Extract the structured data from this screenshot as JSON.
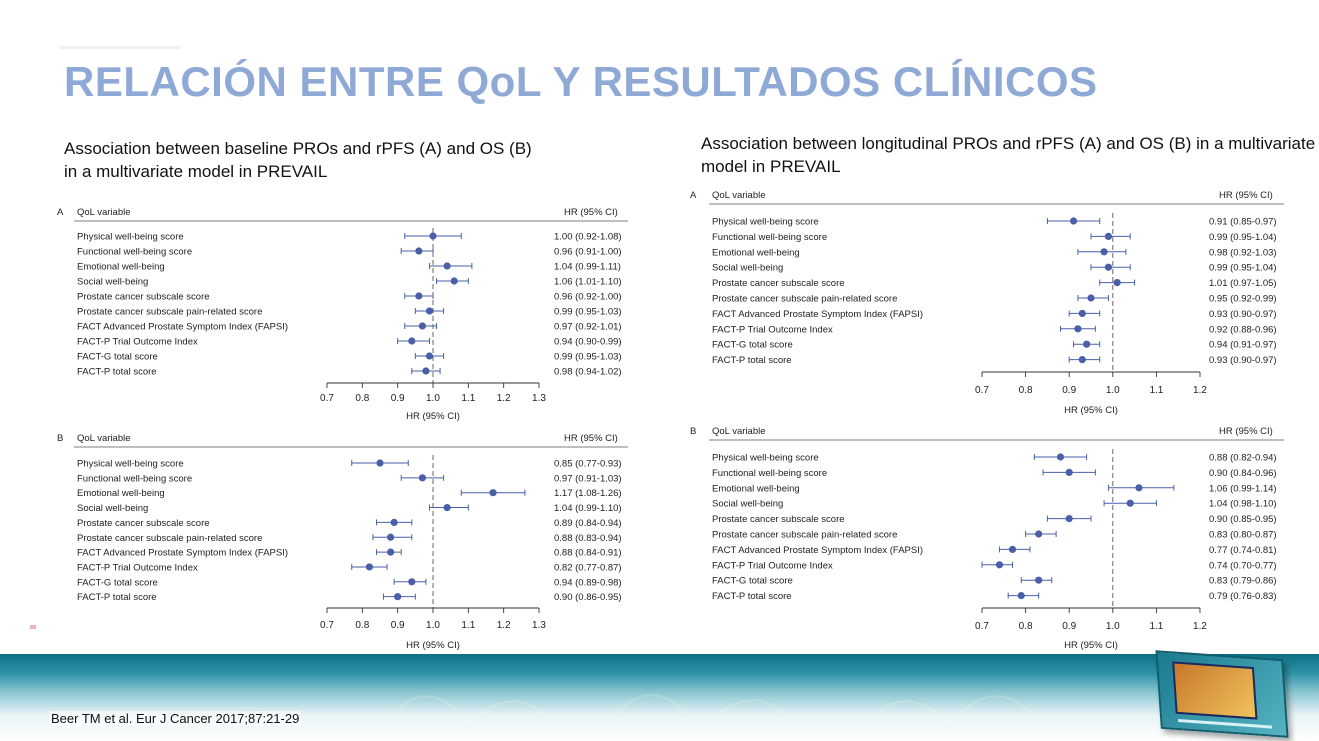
{
  "slide": {
    "title": "RELACIÓN ENTRE QoL Y RESULTADOS CLÍNICOS",
    "subtitle_left": "Association between baseline PROs and rPFS (A) and OS (B) in a multivariate model in PREVAIL",
    "subtitle_right": "Association between longitudinal PROs and rPFS (A) and OS (B) in a multivariate model in PREVAIL",
    "citation": "Beer TM et al. Eur J Cancer 2017;87:21-29"
  },
  "colors": {
    "title": "#8fa9d6",
    "marker": "#4a5fa8",
    "teal_band": "#0d6f84"
  },
  "chart_data": [
    {
      "type": "forest",
      "panel": "A",
      "group": "baseline",
      "header_variable": "QoL variable",
      "header_hr": "HR (95% CI)",
      "xlabel": "HR (95% CI)",
      "xlim": [
        0.7,
        1.3
      ],
      "ticks": [
        "0.7",
        "0.8",
        "0.9",
        "1.0",
        "1.1",
        "1.2",
        "1.3"
      ],
      "reference": 1.0,
      "rows": [
        {
          "label": "Physical well-being score",
          "hr": 1.0,
          "lo": 0.92,
          "hi": 1.08,
          "text": "1.00 (0.92-1.08)"
        },
        {
          "label": "Functional well-being score",
          "hr": 0.96,
          "lo": 0.91,
          "hi": 1.0,
          "text": "0.96 (0.91-1.00)"
        },
        {
          "label": "Emotional well-being",
          "hr": 1.04,
          "lo": 0.99,
          "hi": 1.11,
          "text": "1.04 (0.99-1.11)"
        },
        {
          "label": "Social well-being",
          "hr": 1.06,
          "lo": 1.01,
          "hi": 1.1,
          "text": "1.06 (1.01-1.10)"
        },
        {
          "label": "Prostate cancer subscale score",
          "hr": 0.96,
          "lo": 0.92,
          "hi": 1.0,
          "text": "0.96 (0.92-1.00)"
        },
        {
          "label": "Prostate cancer subscale pain-related score",
          "hr": 0.99,
          "lo": 0.95,
          "hi": 1.03,
          "text": "0.99 (0.95-1.03)"
        },
        {
          "label": "FACT Advanced Prostate Symptom Index (FAPSI)",
          "hr": 0.97,
          "lo": 0.92,
          "hi": 1.01,
          "text": "0.97 (0.92-1.01)"
        },
        {
          "label": "FACT-P Trial Outcome Index",
          "hr": 0.94,
          "lo": 0.9,
          "hi": 0.99,
          "text": "0.94 (0.90-0.99)"
        },
        {
          "label": "FACT-G total score",
          "hr": 0.99,
          "lo": 0.95,
          "hi": 1.03,
          "text": "0.99 (0.95-1.03)"
        },
        {
          "label": "FACT-P total score",
          "hr": 0.98,
          "lo": 0.94,
          "hi": 1.02,
          "text": "0.98 (0.94-1.02)"
        }
      ]
    },
    {
      "type": "forest",
      "panel": "B",
      "group": "baseline",
      "header_variable": "QoL variable",
      "header_hr": "HR (95% CI)",
      "xlabel": "HR (95% CI)",
      "xlim": [
        0.7,
        1.3
      ],
      "ticks": [
        "0.7",
        "0.8",
        "0.9",
        "1.0",
        "1.1",
        "1.2",
        "1.3"
      ],
      "reference": 1.0,
      "rows": [
        {
          "label": "Physical well-being score",
          "hr": 0.85,
          "lo": 0.77,
          "hi": 0.93,
          "text": "0.85 (0.77-0.93)"
        },
        {
          "label": "Functional well-being score",
          "hr": 0.97,
          "lo": 0.91,
          "hi": 1.03,
          "text": "0.97 (0.91-1.03)"
        },
        {
          "label": "Emotional well-being",
          "hr": 1.17,
          "lo": 1.08,
          "hi": 1.26,
          "text": "1.17 (1.08-1.26)"
        },
        {
          "label": "Social well-being",
          "hr": 1.04,
          "lo": 0.99,
          "hi": 1.1,
          "text": "1.04 (0.99-1.10)"
        },
        {
          "label": "Prostate cancer subscale score",
          "hr": 0.89,
          "lo": 0.84,
          "hi": 0.94,
          "text": "0.89 (0.84-0.94)"
        },
        {
          "label": "Prostate cancer subscale pain-related score",
          "hr": 0.88,
          "lo": 0.83,
          "hi": 0.94,
          "text": "0.88 (0.83-0.94)"
        },
        {
          "label": "FACT Advanced Prostate Symptom Index (FAPSI)",
          "hr": 0.88,
          "lo": 0.84,
          "hi": 0.91,
          "text": "0.88 (0.84-0.91)"
        },
        {
          "label": "FACT-P Trial Outcome Index",
          "hr": 0.82,
          "lo": 0.77,
          "hi": 0.87,
          "text": "0.82 (0.77-0.87)"
        },
        {
          "label": "FACT-G total score",
          "hr": 0.94,
          "lo": 0.89,
          "hi": 0.98,
          "text": "0.94 (0.89-0.98)"
        },
        {
          "label": "FACT-P total score",
          "hr": 0.9,
          "lo": 0.86,
          "hi": 0.95,
          "text": "0.90 (0.86-0.95)"
        }
      ]
    },
    {
      "type": "forest",
      "panel": "A",
      "group": "longitudinal",
      "header_variable": "QoL variable",
      "header_hr": "HR (95% CI)",
      "xlabel": "HR (95% CI)",
      "xlim": [
        0.7,
        1.2
      ],
      "ticks": [
        "0.7",
        "0.8",
        "0.9",
        "1.0",
        "1.1",
        "1.2"
      ],
      "reference": 1.0,
      "rows": [
        {
          "label": "Physical well-being score",
          "hr": 0.91,
          "lo": 0.85,
          "hi": 0.97,
          "text": "0.91 (0.85-0.97)"
        },
        {
          "label": "Functional well-being score",
          "hr": 0.99,
          "lo": 0.95,
          "hi": 1.04,
          "text": "0.99 (0.95-1.04)"
        },
        {
          "label": "Emotional well-being",
          "hr": 0.98,
          "lo": 0.92,
          "hi": 1.03,
          "text": "0.98 (0.92-1.03)"
        },
        {
          "label": "Social well-being",
          "hr": 0.99,
          "lo": 0.95,
          "hi": 1.04,
          "text": "0.99 (0.95-1.04)"
        },
        {
          "label": "Prostate cancer subscale score",
          "hr": 1.01,
          "lo": 0.97,
          "hi": 1.05,
          "text": "1.01 (0.97-1.05)"
        },
        {
          "label": "Prostate cancer subscale pain-related score",
          "hr": 0.95,
          "lo": 0.92,
          "hi": 0.99,
          "text": "0.95 (0.92-0.99)"
        },
        {
          "label": "FACT Advanced Prostate Symptom Index (FAPSI)",
          "hr": 0.93,
          "lo": 0.9,
          "hi": 0.97,
          "text": "0.93 (0.90-0.97)"
        },
        {
          "label": "FACT-P Trial Outcome Index",
          "hr": 0.92,
          "lo": 0.88,
          "hi": 0.96,
          "text": "0.92 (0.88-0.96)"
        },
        {
          "label": "FACT-G total score",
          "hr": 0.94,
          "lo": 0.91,
          "hi": 0.97,
          "text": "0.94 (0.91-0.97)"
        },
        {
          "label": "FACT-P total score",
          "hr": 0.93,
          "lo": 0.9,
          "hi": 0.97,
          "text": "0.93 (0.90-0.97)"
        }
      ]
    },
    {
      "type": "forest",
      "panel": "B",
      "group": "longitudinal",
      "header_variable": "QoL variable",
      "header_hr": "HR (95% CI)",
      "xlabel": "HR (95% CI)",
      "xlim": [
        0.7,
        1.2
      ],
      "ticks": [
        "0.7",
        "0.8",
        "0.9",
        "1.0",
        "1.1",
        "1.2"
      ],
      "reference": 1.0,
      "rows": [
        {
          "label": "Physical well-being score",
          "hr": 0.88,
          "lo": 0.82,
          "hi": 0.94,
          "text": "0.88 (0.82-0.94)"
        },
        {
          "label": "Functional well-being score",
          "hr": 0.9,
          "lo": 0.84,
          "hi": 0.96,
          "text": "0.90 (0.84-0.96)"
        },
        {
          "label": "Emotional well-being",
          "hr": 1.06,
          "lo": 0.99,
          "hi": 1.14,
          "text": "1.06 (0.99-1.14)"
        },
        {
          "label": "Social well-being",
          "hr": 1.04,
          "lo": 0.98,
          "hi": 1.1,
          "text": "1.04 (0.98-1.10)"
        },
        {
          "label": "Prostate cancer subscale score",
          "hr": 0.9,
          "lo": 0.85,
          "hi": 0.95,
          "text": "0.90 (0.85-0.95)"
        },
        {
          "label": "Prostate cancer subscale pain-related score",
          "hr": 0.83,
          "lo": 0.8,
          "hi": 0.87,
          "text": "0.83 (0.80-0.87)"
        },
        {
          "label": "FACT Advanced Prostate Symptom Index (FAPSI)",
          "hr": 0.77,
          "lo": 0.74,
          "hi": 0.81,
          "text": "0.77 (0.74-0.81)"
        },
        {
          "label": "FACT-P Trial Outcome Index",
          "hr": 0.74,
          "lo": 0.7,
          "hi": 0.77,
          "text": "0.74 (0.70-0.77)"
        },
        {
          "label": "FACT-G total score",
          "hr": 0.83,
          "lo": 0.79,
          "hi": 0.86,
          "text": "0.83 (0.79-0.86)"
        },
        {
          "label": "FACT-P total score",
          "hr": 0.79,
          "lo": 0.76,
          "hi": 0.83,
          "text": "0.79 (0.76-0.83)"
        }
      ]
    }
  ]
}
